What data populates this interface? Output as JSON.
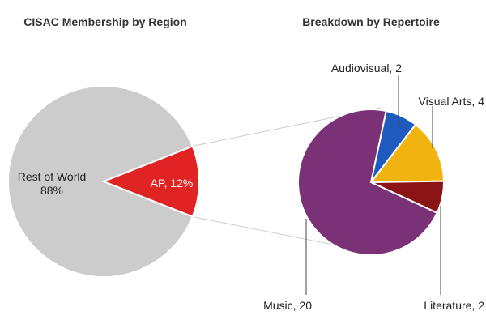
{
  "chart_data": [
    {
      "type": "pie",
      "title": "CISAC Membership by Region",
      "slices": [
        {
          "label": "Rest of World",
          "value_text": "88%",
          "value": 88,
          "color": "#cccccc"
        },
        {
          "label": "AP, 12%",
          "value": 12,
          "color": "#e02424"
        }
      ]
    },
    {
      "type": "pie",
      "title": "Breakdown by Repertoire",
      "slices": [
        {
          "label": "Audiovisual, 2",
          "value": 2,
          "color": "#1f5bbf"
        },
        {
          "label": "Visual Arts, 4",
          "value": 4,
          "color": "#f0b310"
        },
        {
          "label": "Literature, 2",
          "value": 2,
          "color": "#8b1416"
        },
        {
          "label": "Music, 20",
          "value": 20,
          "color": "#7a3175"
        }
      ]
    }
  ]
}
